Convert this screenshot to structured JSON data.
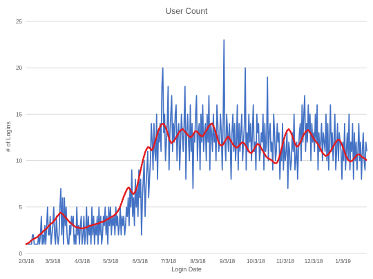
{
  "chart_data": {
    "type": "line",
    "title": "User Count",
    "xlabel": "Login Date",
    "ylabel": "# of Logins",
    "ylim": [
      0,
      25
    ],
    "yticks": [
      0,
      5,
      10,
      15,
      20,
      25
    ],
    "x_start": "2/3/18",
    "x_end": "1/28/19",
    "x_ticks": [
      "2/3/18",
      "3/3/18",
      "4/3/18",
      "5/3/18",
      "6/3/18",
      "7/3/18",
      "8/3/18",
      "9/3/18",
      "10/3/18",
      "11/3/18",
      "12/3/18",
      "1/3/19"
    ],
    "grid": "horizontal",
    "legend": "none",
    "series": [
      {
        "style": "solid",
        "color": "#4472c4",
        "values": [
          1,
          1,
          1,
          1,
          1,
          1,
          1,
          2,
          2,
          1,
          1,
          1,
          1,
          1,
          2,
          1,
          2,
          4,
          1,
          2,
          1,
          3,
          1,
          3,
          5,
          2,
          2,
          4,
          1,
          2,
          3,
          5,
          2,
          1,
          4,
          2,
          1,
          2,
          5,
          7,
          2,
          6,
          1,
          6,
          3,
          5,
          2,
          1,
          1,
          3,
          2,
          4,
          3,
          4,
          1,
          2,
          1,
          5,
          2,
          3,
          1,
          3,
          4,
          1,
          2,
          4,
          1,
          2,
          5,
          1,
          4,
          2,
          3,
          1,
          5,
          2,
          4,
          1,
          3,
          2,
          4,
          1,
          5,
          2,
          4,
          1,
          2,
          4,
          3,
          5,
          2,
          4,
          1,
          5,
          3,
          5,
          2,
          4,
          3,
          4,
          2,
          5,
          3,
          4,
          2,
          3,
          5,
          2,
          4,
          3,
          4,
          2,
          3,
          5,
          4,
          6,
          3,
          7,
          5,
          9,
          4,
          6,
          3,
          8,
          5,
          7,
          4,
          9,
          6,
          8,
          2,
          6,
          8,
          10,
          4,
          7,
          9,
          11,
          6,
          8,
          10,
          14,
          12,
          9,
          14,
          11,
          10,
          15,
          8,
          13,
          12,
          14,
          11,
          18,
          20,
          13,
          15,
          10,
          12,
          14,
          18,
          9,
          13,
          15,
          17,
          11,
          14,
          12,
          15,
          16,
          10,
          13,
          14,
          9,
          12,
          15,
          13,
          11,
          14,
          18,
          8,
          13,
          15,
          12,
          10,
          16,
          11,
          14,
          7,
          13,
          12,
          15,
          17,
          10,
          13,
          14,
          9,
          15,
          12,
          16,
          11,
          13,
          14,
          10,
          15,
          12,
          17,
          9,
          14,
          13,
          11,
          15,
          12,
          13,
          10,
          16,
          14,
          11,
          12,
          15,
          13,
          9,
          14,
          23,
          12,
          10,
          15,
          13,
          11,
          14,
          12,
          8,
          13,
          15,
          11,
          14,
          10,
          12,
          16,
          9,
          14,
          11,
          13,
          15,
          10,
          12,
          14,
          20,
          9,
          13,
          11,
          15,
          12,
          14,
          10,
          13,
          16,
          11,
          12,
          9,
          15,
          13,
          14,
          10,
          11,
          13,
          12,
          15,
          9,
          14,
          11,
          12,
          19,
          10,
          13,
          14,
          11,
          12,
          9,
          15,
          13,
          10,
          11,
          14,
          12,
          13,
          8,
          11,
          10,
          14,
          9,
          12,
          10,
          11,
          13,
          7,
          12,
          11,
          9,
          10,
          13,
          11,
          15,
          9,
          10,
          12,
          8,
          11,
          13,
          14,
          10,
          16,
          12,
          15,
          17,
          11,
          14,
          12,
          16,
          13,
          15,
          10,
          14,
          12,
          13,
          11,
          15,
          12,
          16,
          9,
          13,
          11,
          12,
          14,
          10,
          13,
          12,
          11,
          15,
          10,
          14,
          9,
          12,
          16,
          11,
          13,
          10,
          12,
          15,
          9,
          11,
          14,
          10,
          13,
          12,
          11,
          8,
          12,
          10,
          14,
          9,
          11,
          13,
          10,
          15,
          9,
          12,
          11,
          14,
          8,
          13,
          10,
          12,
          9,
          11,
          14,
          10,
          12,
          8,
          11,
          13,
          10,
          9,
          12,
          11
        ]
      },
      {
        "style": "dotted",
        "color": "#e31a1c",
        "values": [
          1,
          1.1,
          1.2,
          1.4,
          1.5,
          1.6,
          1.7,
          1.8,
          2,
          2.1,
          2.3,
          2.5,
          2.6,
          2.8,
          3,
          3.2,
          3.3,
          3.5,
          3.7,
          4,
          4.2,
          4.4,
          4.3,
          4.1,
          3.9,
          3.7,
          3.5,
          3.3,
          3.2,
          3,
          2.9,
          2.8,
          2.8,
          2.7,
          2.7,
          2.7,
          2.8,
          2.8,
          2.9,
          3,
          3,
          3.1,
          3.1,
          3.2,
          3.2,
          3.3,
          3.4,
          3.4,
          3.5,
          3.6,
          3.7,
          3.8,
          3.9,
          4,
          4.1,
          4.3,
          4.5,
          4.8,
          5.2,
          5.7,
          6.2,
          6.6,
          7,
          7.1,
          6.8,
          6.5,
          6.4,
          6.7,
          7.2,
          8,
          8.8,
          9.6,
          10.3,
          10.9,
          11.3,
          11.5,
          11.3,
          11.1,
          11.4,
          12,
          12.6,
          13.2,
          13.6,
          13.9,
          14,
          13.8,
          13.4,
          12.8,
          12.2,
          11.9,
          12,
          12.2,
          12.5,
          12.8,
          13.1,
          13.3,
          13.4,
          13.2,
          13,
          12.8,
          12.6,
          12.5,
          12.7,
          13,
          13.2,
          13.1,
          12.9,
          12.7,
          12.6,
          12.8,
          13.1,
          13.4,
          13.7,
          13.9,
          14,
          13.7,
          13.2,
          12.6,
          12,
          11.7,
          11.6,
          11.8,
          12.1,
          12.4,
          12.6,
          12.3,
          12,
          11.7,
          11.5,
          11.4,
          11.5,
          11.7,
          11.9,
          12,
          11.8,
          11.5,
          11.2,
          10.9,
          10.8,
          11,
          11.3,
          11.6,
          11.8,
          11.7,
          11.4,
          11.1,
          10.8,
          10.5,
          10.3,
          10.2,
          10.1,
          10,
          9.8,
          9.7,
          9.8,
          10.2,
          10.8,
          11.5,
          12.2,
          12.8,
          13.2,
          13.4,
          13.2,
          12.8,
          12.3,
          11.8,
          11.5,
          11.6,
          11.9,
          12.3,
          12.7,
          13,
          13.2,
          13.3,
          13.1,
          12.8,
          12.5,
          12.2,
          12,
          11.8,
          11.5,
          11.1,
          10.8,
          10.6,
          10.5,
          10.6,
          10.8,
          11.1,
          11.4,
          11.7,
          12,
          12.2,
          12.3,
          12,
          11.6,
          11.1,
          10.6,
          10.2,
          10,
          9.9,
          10,
          10.2,
          10.4,
          10.6,
          10.7,
          10.6,
          10.4,
          10.3,
          10.2,
          10
        ]
      }
    ]
  }
}
